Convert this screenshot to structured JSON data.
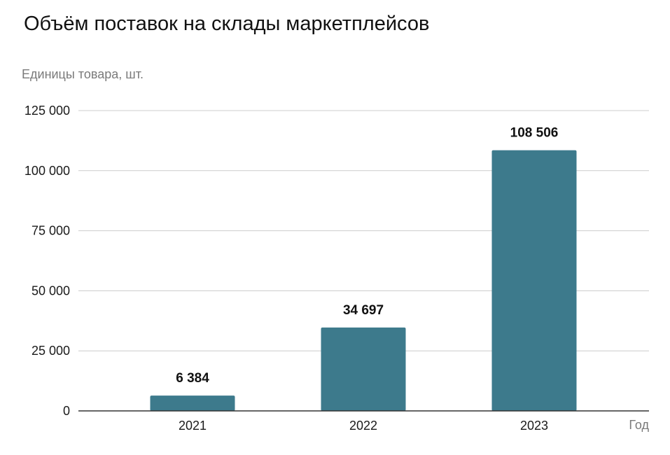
{
  "chart_data": {
    "type": "bar",
    "title": "Объём поставок на склады маркетплейсов",
    "ylabel": "Единицы товара, шт.",
    "xlabel": "Год",
    "categories": [
      "2021",
      "2022",
      "2023"
    ],
    "values": [
      6384,
      34697,
      108506
    ],
    "value_labels": [
      "6 384",
      "34 697",
      "108 506"
    ],
    "ylim": [
      0,
      125000
    ],
    "y_ticks": [
      0,
      25000,
      50000,
      75000,
      100000,
      125000
    ],
    "y_tick_labels": [
      "0",
      "25 000",
      "50 000",
      "75 000",
      "100 000",
      "125 000"
    ],
    "grid": true,
    "legend": "none",
    "bar_color": "#3d7a8c"
  }
}
